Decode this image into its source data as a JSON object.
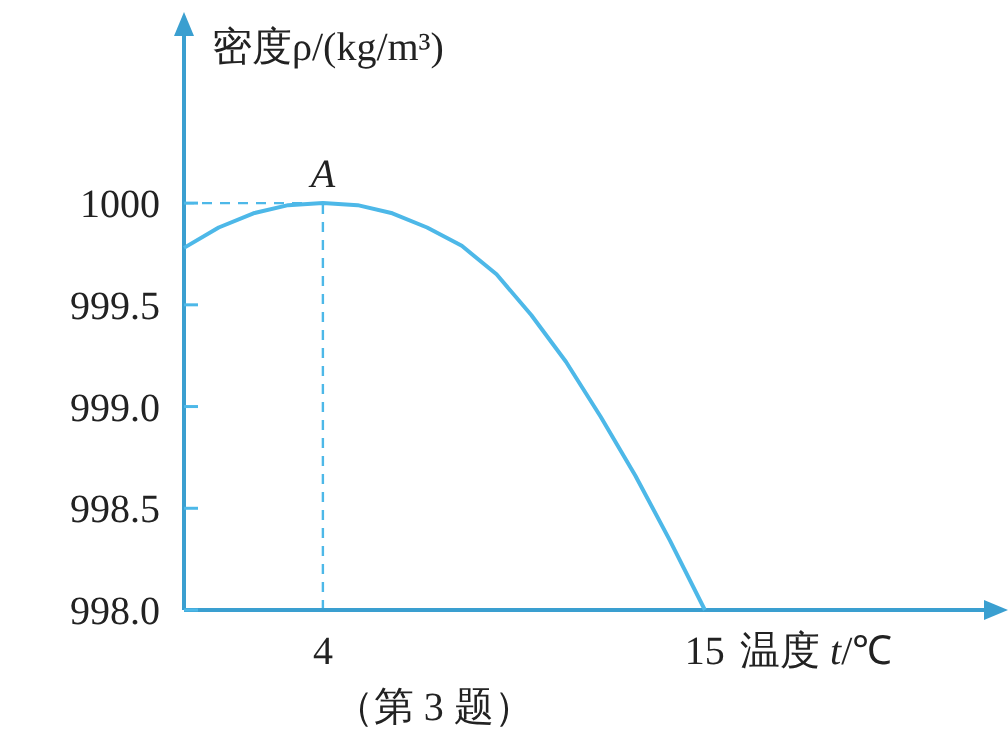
{
  "chart_data": {
    "type": "line",
    "xlabel": "温度 *t*/℃",
    "ylabel": "密度ρ/(kg/m³)",
    "xlim": [
      0,
      23.5
    ],
    "ylim": [
      998,
      1000.9
    ],
    "xticks": [
      4,
      15
    ],
    "yticks": [
      {
        "value": 998,
        "label": "998.0"
      },
      998.5,
      {
        "value": 999,
        "label": "999.0"
      },
      999.5,
      1000
    ],
    "x": [
      0,
      1,
      2,
      3,
      4,
      5,
      6,
      7,
      8,
      9,
      10,
      11,
      12,
      13,
      14,
      15
    ],
    "series": [
      {
        "color": "#4db8e8",
        "values": [
          999.78,
          999.88,
          999.95,
          999.99,
          1000,
          999.99,
          999.95,
          999.88,
          999.79,
          999.65,
          999.45,
          999.22,
          998.95,
          998.66,
          998.34,
          998.0
        ]
      }
    ],
    "ref_lines": [
      {
        "axis": "x",
        "value": 4,
        "line_style": "dashed",
        "color": "#4db8e8"
      },
      {
        "axis": "y",
        "value": 1000,
        "line_style": "dashed",
        "color": "#4db8e8"
      }
    ],
    "annotations": [
      {
        "text": "*A*",
        "x": 4,
        "y": 1000
      },
      "（第 3 题）"
    ],
    "grid": false,
    "marker": "none",
    "line_style": "solid"
  }
}
